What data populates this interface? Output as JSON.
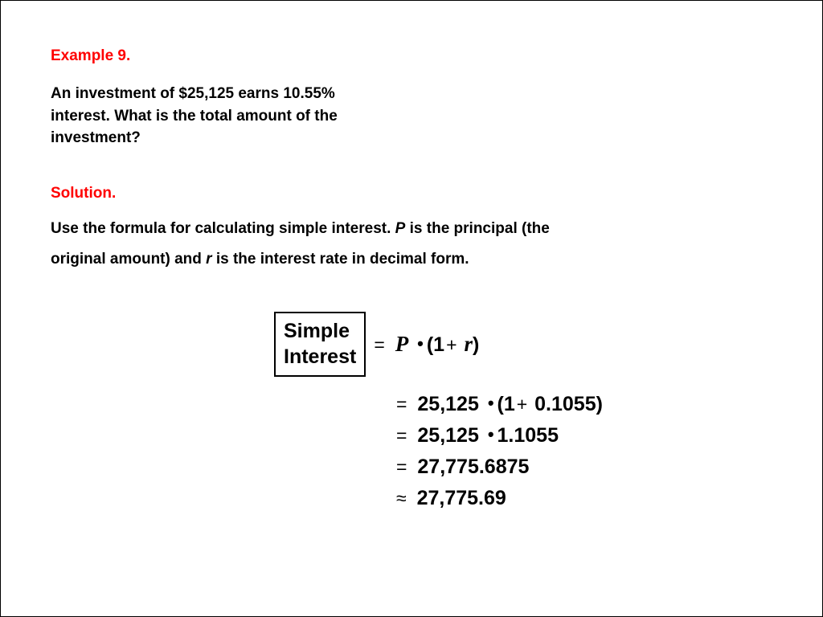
{
  "example": {
    "heading": "Example 9.",
    "problem": "An investment of $25,125 earns 10.55% interest. What is the total amount of the investment?"
  },
  "solution": {
    "heading": "Solution.",
    "text_before_p": "Use the formula for calculating simple interest. ",
    "p_var": "P",
    "text_mid": " is the principal (the original amount) and ",
    "r_var": "r",
    "text_after": " is the interest rate in decimal form."
  },
  "formula": {
    "box_line1": "Simple",
    "box_line2": "Interest",
    "eq_sign": "=",
    "approx_sign": "≈",
    "P": "P",
    "r": "r",
    "bullet": "•",
    "row1_after_P": "(1",
    "row1_plus": "+",
    "row1_close": ")",
    "row2": "25,125",
    "row2_after": "(1",
    "row2_plus": "+",
    "row2_r": "0.1055)",
    "row3_a": "25,125",
    "row3_b": "1.1055",
    "row4": "27,775.6875",
    "row5": "27,775.69"
  }
}
